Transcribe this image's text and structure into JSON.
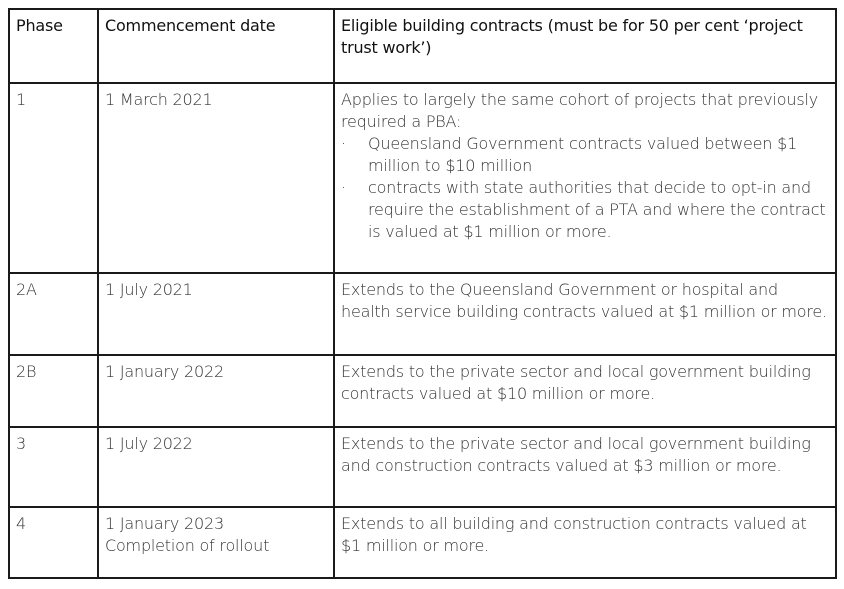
{
  "headers": [
    "Phase",
    "Commencement date",
    "Eligible building contracts (must be for 50 per cent ‘project trust work’)"
  ],
  "rows": [
    {
      "phase": "1",
      "date": "1 March 2021",
      "text": "Applies to largely the same cohort of projects that previously required a PBA:",
      "bullets": [
        "Queensland Government contracts valued between $1 million to $10 million",
        "contracts with state authorities that decide to opt-in and require the establishment of a PTA and where the contract is valued at $1 million or more."
      ]
    },
    {
      "phase": "2A",
      "date": "1 July 2021",
      "text": "Extends to the Queensland Government or hospital and health service building contracts valued at $1 million or more."
    },
    {
      "phase": "2B",
      "date": "1 January 2022",
      "text": "Extends to the private sector and local government building contracts valued at $10 million or more."
    },
    {
      "phase": "3",
      "date": "1 July 2022",
      "text": "Extends to the private sector and local government building and construction contracts valued at $3 million or more."
    },
    {
      "phase": "4",
      "date": "1 January 2023",
      "date_note": "Completion of rollout",
      "text": "Extends to all building and construction contracts valued at $1 million or more."
    }
  ]
}
